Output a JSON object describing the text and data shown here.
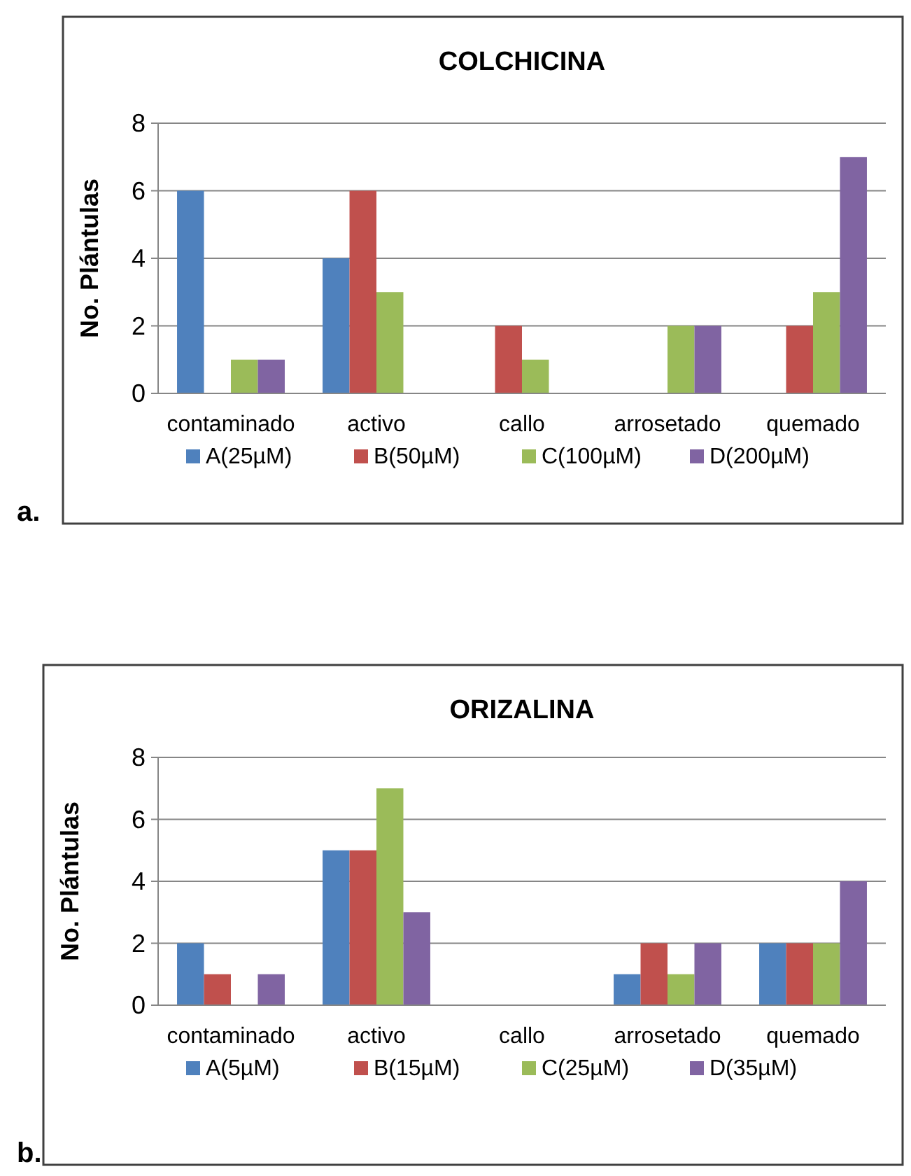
{
  "chart_data": [
    {
      "type": "bar",
      "title": "COLCHICINA",
      "ylabel": "No. Plántulas",
      "annotations": [
        "a."
      ],
      "categories": [
        "contaminado",
        "activo",
        "callo",
        "arrosetado",
        "quemado"
      ],
      "series": [
        {
          "name": "A(25µM)",
          "color": "#4f81bd",
          "values": [
            6,
            4,
            0,
            0,
            0
          ]
        },
        {
          "name": "B(50µM)",
          "color": "#c0504d",
          "values": [
            0,
            6,
            2,
            0,
            2
          ]
        },
        {
          "name": "C(100µM)",
          "color": "#9bbb59",
          "values": [
            1,
            3,
            1,
            2,
            3
          ]
        },
        {
          "name": "D(200µM)",
          "color": "#8064a2",
          "values": [
            1,
            0,
            0,
            2,
            7
          ]
        }
      ],
      "ylim": [
        0,
        8
      ],
      "yticks": [
        0,
        2,
        4,
        6,
        8
      ],
      "grid": "y",
      "legend": "bottom"
    },
    {
      "type": "bar",
      "title": "ORIZALINA",
      "ylabel": "No. Plántulas",
      "annotations": [
        "b."
      ],
      "categories": [
        "contaminado",
        "activo",
        "callo",
        "arrosetado",
        "quemado"
      ],
      "series": [
        {
          "name": "A(5µM)",
          "color": "#4f81bd",
          "values": [
            2,
            5,
            0,
            1,
            2
          ]
        },
        {
          "name": "B(15µM)",
          "color": "#c0504d",
          "values": [
            1,
            5,
            0,
            2,
            2
          ]
        },
        {
          "name": "C(25µM)",
          "color": "#9bbb59",
          "values": [
            0,
            7,
            0,
            1,
            2
          ]
        },
        {
          "name": "D(35µM)",
          "color": "#8064a2",
          "values": [
            1,
            3,
            0,
            2,
            4
          ]
        }
      ],
      "ylim": [
        0,
        8
      ],
      "yticks": [
        0,
        2,
        4,
        6,
        8
      ],
      "grid": "y",
      "legend": "bottom"
    }
  ]
}
